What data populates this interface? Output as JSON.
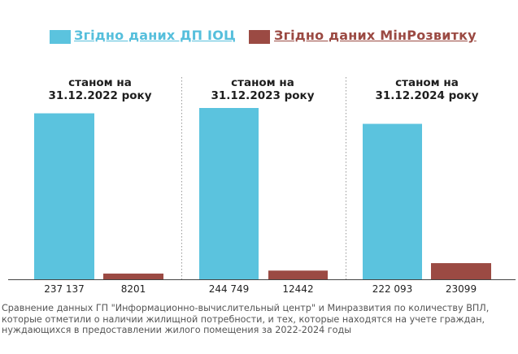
{
  "legend": {
    "item1": "Згідно даних ДП ІОЦ",
    "item2": "Згідно даних МінРозвитку"
  },
  "colors": {
    "series1": "#5bc3de",
    "series2": "#9b4a43",
    "text1": "#56bfdc",
    "text2": "#9b4a43"
  },
  "chart_data": {
    "type": "bar",
    "categories": [
      "станом на\n31.12.2022 року",
      "станом на\n31.12.2023 року",
      "станом на\n31.12.2024 року"
    ],
    "series": [
      {
        "name": "Згідно даних ДП ІОЦ",
        "values": [
          237137,
          244749,
          222093
        ],
        "labels": [
          "237 137",
          "244 749",
          "222 093"
        ]
      },
      {
        "name": "Згідно даних МінРозвитку",
        "values": [
          8201,
          12442,
          23099
        ],
        "labels": [
          "8201",
          "12442",
          "23099"
        ]
      }
    ],
    "legend_position": "top",
    "grid": false
  },
  "caption": "Сравнение данных ГП \"Информационно-вычислительный центр\" и Минразвития по количеству ВПЛ, которые отметили о наличии жилищной потребности, и тех, которые находятся на учете граждан, нуждающихся в предоставлении жилого помещения за 2022-2024 годы"
}
